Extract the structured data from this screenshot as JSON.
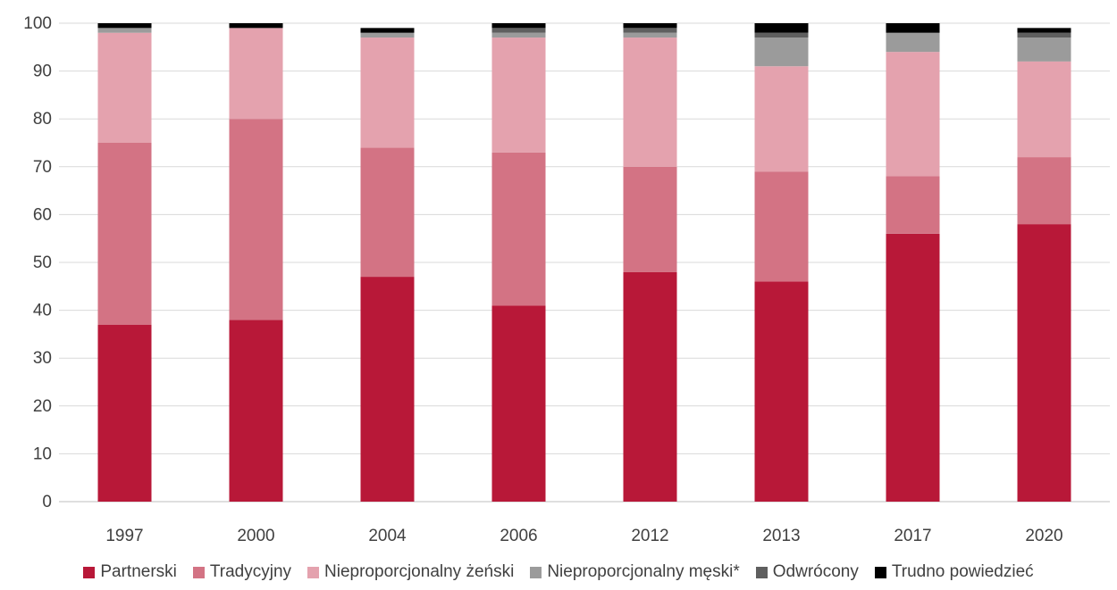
{
  "chart_data": {
    "type": "bar",
    "stacked": true,
    "categories": [
      "1997",
      "2000",
      "2004",
      "2006",
      "2012",
      "2013",
      "2017",
      "2020"
    ],
    "series": [
      {
        "name": "Partnerski",
        "color": "#b81838",
        "values": [
          37,
          38,
          47,
          41,
          48,
          46,
          56,
          58
        ]
      },
      {
        "name": "Tradycyjny",
        "color": "#d37384",
        "values": [
          38,
          42,
          27,
          32,
          22,
          23,
          12,
          14
        ]
      },
      {
        "name": "Nieproporcjonalny żeński",
        "color": "#e4a2ae",
        "values": [
          23,
          19,
          23,
          24,
          27,
          22,
          26,
          20
        ]
      },
      {
        "name": "Nieproporcjonalny męski*",
        "color": "#9b9b9b",
        "values": [
          1,
          0,
          1,
          1,
          1,
          6,
          4,
          5
        ]
      },
      {
        "name": "Odwrócony",
        "color": "#5f5f5f",
        "values": [
          0,
          0,
          0,
          1,
          1,
          1,
          0,
          1
        ]
      },
      {
        "name": "Trudno powiedzieć",
        "color": "#000000",
        "values": [
          1,
          1,
          1,
          1,
          1,
          2,
          2,
          1
        ]
      }
    ],
    "ylim": [
      0,
      100
    ],
    "yticks": [
      0,
      10,
      20,
      30,
      40,
      50,
      60,
      70,
      80,
      90,
      100
    ],
    "grid": true,
    "legend": "bottom",
    "title": "",
    "xlabel": "",
    "ylabel": ""
  }
}
